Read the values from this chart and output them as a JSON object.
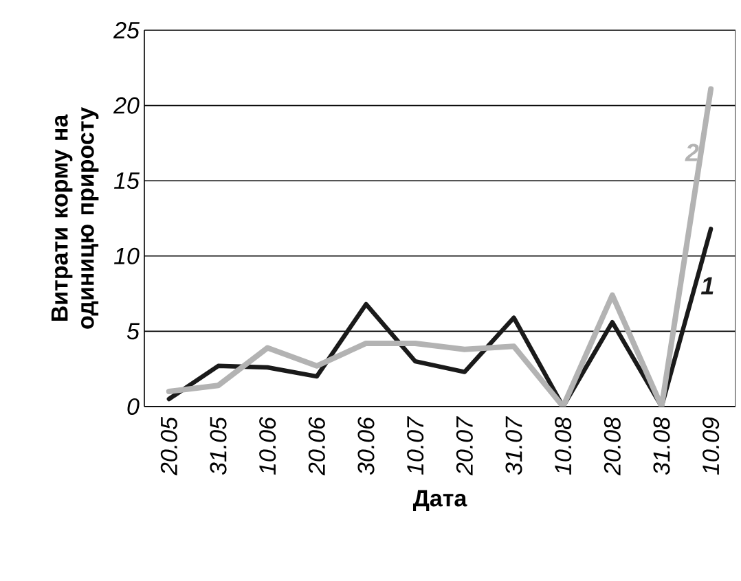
{
  "chart_data": {
    "type": "line",
    "xlabel": "Дата",
    "ylabel": "Витрати корму на одиницю приросту",
    "categories": [
      "20.05",
      "31.05",
      "10.06",
      "20.06",
      "30.06",
      "10.07",
      "20.07",
      "31.07",
      "10.08",
      "20.08",
      "31.08",
      "10.09"
    ],
    "series": [
      {
        "name": "1",
        "color": "#1a1a1a",
        "values": [
          0.5,
          2.7,
          2.6,
          2.0,
          6.8,
          3.0,
          2.3,
          5.9,
          0,
          5.6,
          0,
          11.8
        ]
      },
      {
        "name": "2",
        "color": "#b3b3b3",
        "values": [
          1.0,
          1.4,
          3.9,
          2.7,
          4.2,
          4.2,
          3.8,
          4.0,
          0,
          7.4,
          0,
          21.1
        ]
      }
    ],
    "ylim": [
      0,
      25
    ],
    "yticks": [
      0,
      5,
      10,
      15,
      20,
      25
    ],
    "grid": "y",
    "marker": "none",
    "line_style": "solid"
  }
}
